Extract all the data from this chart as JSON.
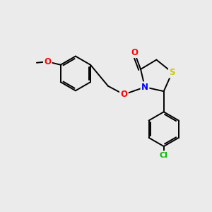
{
  "bg_color": "#ebebeb",
  "bond_color": "#000000",
  "atom_colors": {
    "O": "#ff0000",
    "N": "#0000ff",
    "S": "#cccc00",
    "Cl": "#00bb00",
    "C": "#000000"
  },
  "figsize": [
    3.0,
    3.0
  ],
  "dpi": 100
}
